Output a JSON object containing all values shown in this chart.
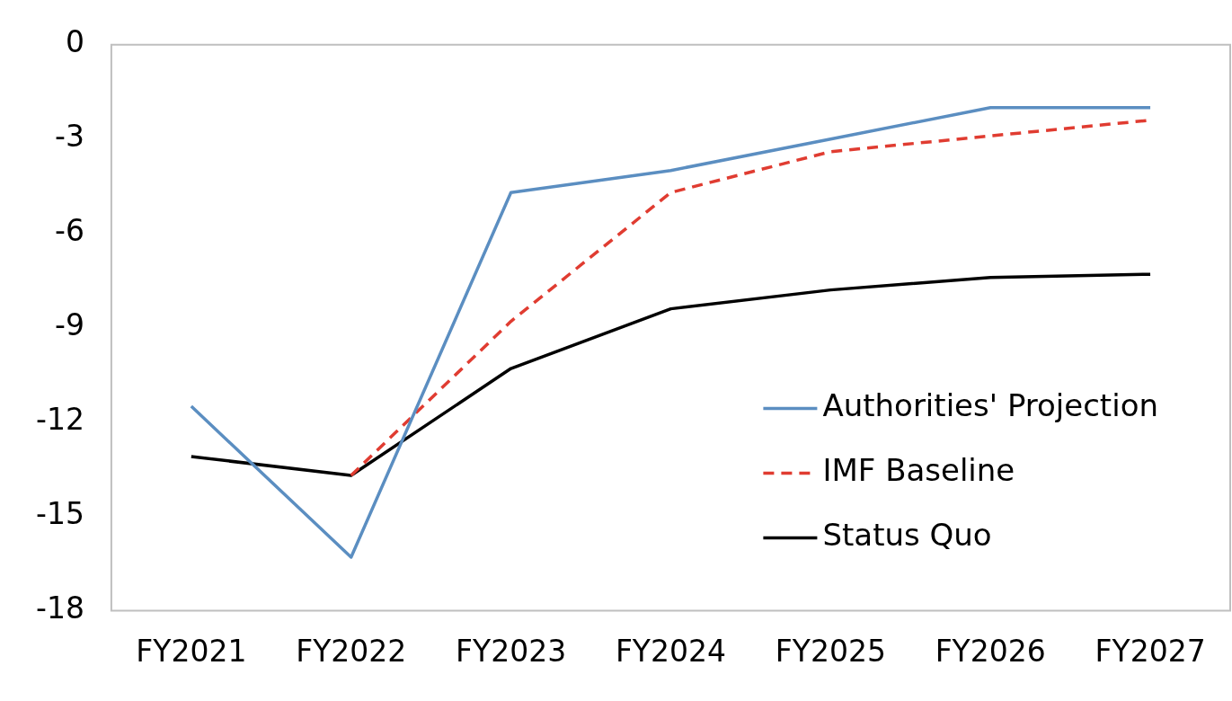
{
  "chart_data": {
    "type": "line",
    "categories": [
      "FY2021",
      "FY2022",
      "FY2023",
      "FY2024",
      "FY2025",
      "FY2026",
      "FY2027"
    ],
    "series": [
      {
        "name": "Authorities' Projection",
        "color": "#5b8ec1",
        "line_style": "solid",
        "values": [
          -11.5,
          -16.3,
          -4.7,
          -4.0,
          -3.0,
          -2.0,
          -2.0
        ]
      },
      {
        "name": "IMF Baseline",
        "color": "#e03c31",
        "line_style": "dashed",
        "values": [
          null,
          -13.7,
          -8.8,
          -4.7,
          -3.4,
          -2.9,
          -2.4
        ]
      },
      {
        "name": "Status Quo",
        "color": "#000000",
        "line_style": "solid",
        "values": [
          -13.1,
          -13.7,
          -10.3,
          -8.4,
          -7.8,
          -7.4,
          -7.3
        ]
      }
    ],
    "ylim": [
      -18,
      0
    ],
    "yticks": [
      -18,
      -15,
      -12,
      -9,
      -6,
      -3,
      0
    ],
    "grid": false,
    "legend": "bottom right",
    "marker": "none"
  }
}
